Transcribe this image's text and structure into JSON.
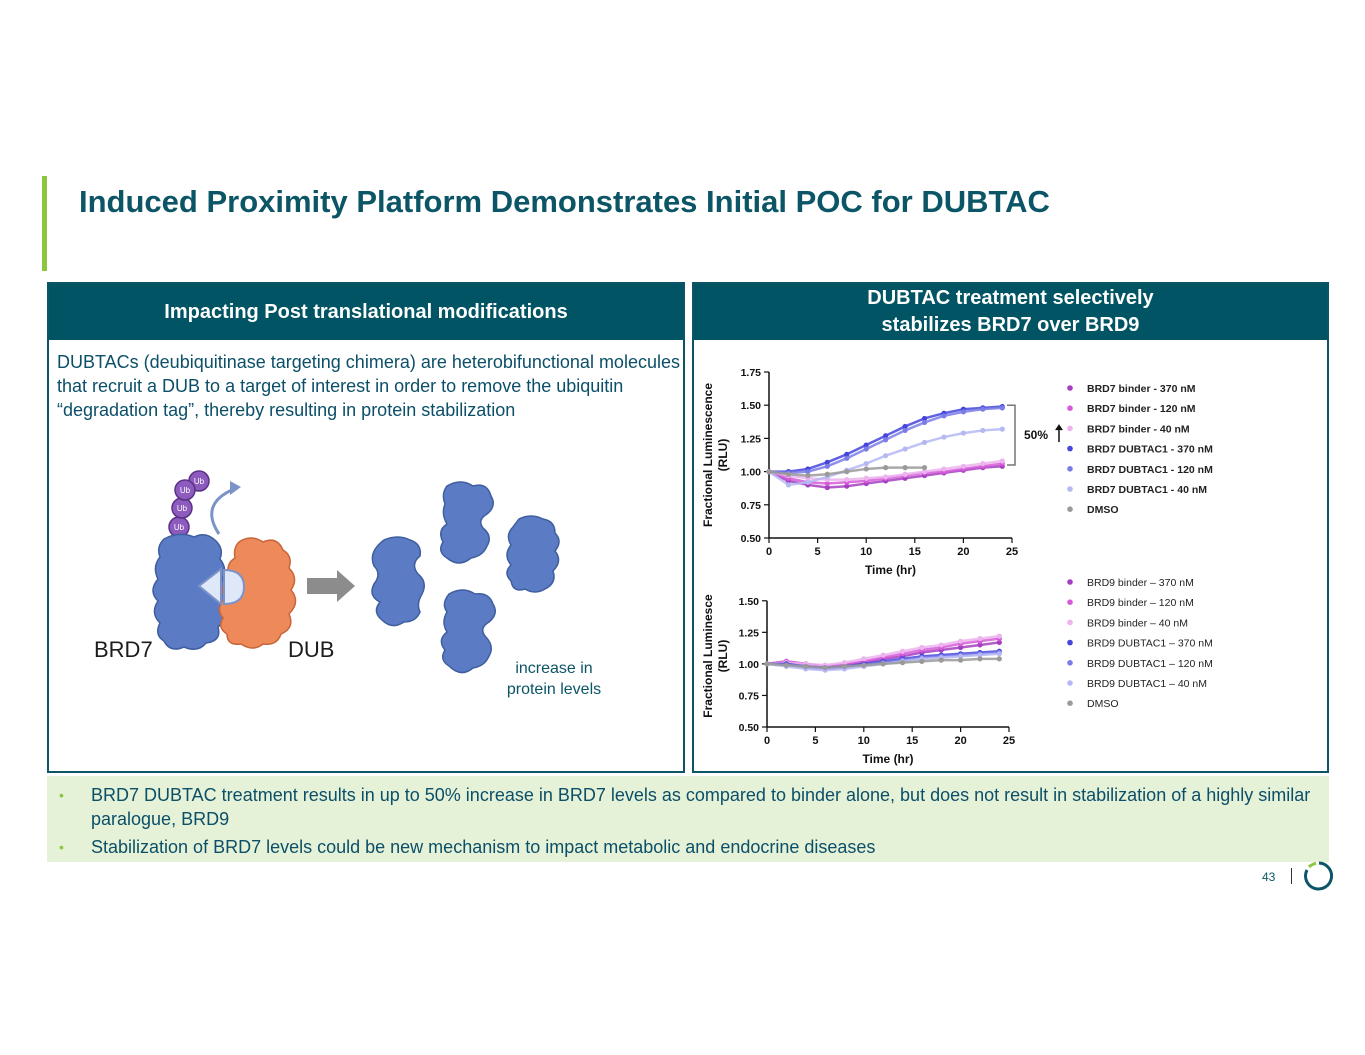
{
  "title": "Induced Proximity Platform Demonstrates Initial POC for DUBTAC",
  "left_panel": {
    "header": "Impacting Post translational modifications",
    "intro": "DUBTACs (deubiquitinase targeting chimera) are heterobifunctional molecules that recruit a DUB to a target of interest in order to remove the ubiquitin “degradation tag”, thereby resulting in protein stabilization",
    "ub_label": "Ub",
    "brd7_label": "BRD7",
    "dub_label": "DUB",
    "increase_label": "increase in protein levels"
  },
  "right_panel": {
    "header_line1": "DUBTAC treatment selectively",
    "header_line2": "stabilizes BRD7 over BRD9"
  },
  "bullets": [
    "BRD7 DUBTAC treatment results in up to 50% increase in BRD7 levels as compared to binder alone, but does not result in stabilization of a highly similar paralogue, BRD9",
    "Stabilization of BRD7 levels could be new mechanism to impact metabolic and endocrine diseases"
  ],
  "page_number": "43",
  "colors": {
    "title": "#0b5566",
    "header_bg": "#005463",
    "accent": "#8cc63f",
    "bullet_bg": "#e6f2d8",
    "protein_blue": "#5b7cc4",
    "dub_orange": "#ee8a5a",
    "ub_purple": "#8d5bbd"
  },
  "chart_data": [
    {
      "type": "scatter",
      "xlabel": "Time (hr)",
      "ylabel_line1": "Fractional  Luminescence",
      "ylabel_line2": "(RLU)",
      "xlim": [
        0,
        25
      ],
      "ylim": [
        0.5,
        1.75
      ],
      "xticks": [
        0,
        5,
        10,
        15,
        20,
        25
      ],
      "xtick_labels": [
        "0",
        "5",
        "10",
        "15",
        "20",
        "25"
      ],
      "yticks": [
        0.5,
        0.75,
        1.0,
        1.25,
        1.5,
        1.75
      ],
      "ytick_labels": [
        "0.50",
        "0.75",
        "1.00",
        "1.25",
        "1.50",
        "1.75"
      ],
      "annotation": "50%",
      "annotation_range": [
        1.05,
        1.5
      ],
      "legend_position": "right",
      "series": [
        {
          "name": "BRD7 binder - 370 nM",
          "color": "#a43fc1",
          "x": [
            0,
            2,
            4,
            6,
            8,
            10,
            12,
            14,
            16,
            18,
            20,
            22,
            24
          ],
          "y": [
            1.0,
            0.93,
            0.9,
            0.88,
            0.89,
            0.91,
            0.93,
            0.95,
            0.97,
            0.99,
            1.01,
            1.03,
            1.04
          ]
        },
        {
          "name": "BRD7 binder -  120 nM",
          "color": "#d65ad8",
          "x": [
            0,
            2,
            4,
            6,
            8,
            10,
            12,
            14,
            16,
            18,
            20,
            22,
            24
          ],
          "y": [
            1.0,
            0.95,
            0.92,
            0.91,
            0.92,
            0.93,
            0.95,
            0.97,
            0.99,
            1.0,
            1.02,
            1.04,
            1.06
          ]
        },
        {
          "name": "BRD7 binder -  40 nM",
          "color": "#ecb3ef",
          "x": [
            0,
            2,
            4,
            6,
            8,
            10,
            12,
            14,
            16,
            18,
            20,
            22,
            24
          ],
          "y": [
            1.0,
            0.97,
            0.95,
            0.94,
            0.94,
            0.95,
            0.96,
            0.98,
            1.0,
            1.02,
            1.04,
            1.06,
            1.08
          ]
        },
        {
          "name": "BRD7 DUBTAC1 -  370 nM",
          "color": "#4545de",
          "x": [
            0,
            2,
            4,
            6,
            8,
            10,
            12,
            14,
            16,
            18,
            20,
            22,
            24
          ],
          "y": [
            1.0,
            1.0,
            1.02,
            1.07,
            1.13,
            1.2,
            1.27,
            1.34,
            1.4,
            1.44,
            1.47,
            1.48,
            1.49
          ]
        },
        {
          "name": "BRD7 DUBTAC1 - 120 nM",
          "color": "#7b7de6",
          "x": [
            0,
            2,
            4,
            6,
            8,
            10,
            12,
            14,
            16,
            18,
            20,
            22,
            24
          ],
          "y": [
            1.0,
            0.99,
            1.0,
            1.04,
            1.1,
            1.17,
            1.24,
            1.31,
            1.37,
            1.42,
            1.45,
            1.47,
            1.48
          ]
        },
        {
          "name": "BRD7 DUBTAC1 -  40 nM",
          "color": "#b5b8f2",
          "x": [
            0,
            2,
            4,
            6,
            8,
            10,
            12,
            14,
            16,
            18,
            20,
            22,
            24
          ],
          "y": [
            1.0,
            0.9,
            0.92,
            0.96,
            1.01,
            1.06,
            1.12,
            1.17,
            1.22,
            1.26,
            1.29,
            1.31,
            1.32
          ]
        },
        {
          "name": "DMSO",
          "color": "#9a9a9a",
          "x": [
            0,
            2,
            4,
            6,
            8,
            10,
            12,
            14,
            16
          ],
          "y": [
            1.0,
            0.98,
            0.97,
            0.98,
            1.0,
            1.02,
            1.03,
            1.03,
            1.03
          ]
        }
      ]
    },
    {
      "type": "scatter",
      "xlabel": "Time (hr)",
      "ylabel_line1": "Fractional  Luminesce",
      "ylabel_line2": "(RLU)",
      "xlim": [
        0,
        25
      ],
      "ylim": [
        0.5,
        1.625
      ],
      "xticks": [
        0,
        5,
        10,
        15,
        20,
        25
      ],
      "xtick_labels": [
        "0",
        "5",
        "10",
        "15",
        "20",
        "25"
      ],
      "yticks": [
        0.5,
        0.75,
        1.0,
        1.25,
        1.5
      ],
      "ytick_labels": [
        "0.50",
        "0.75",
        "1.00",
        "1.25",
        "1.50"
      ],
      "legend_position": "right",
      "series": [
        {
          "name": "BRD9 binder – 370 nM",
          "color": "#a43fc1",
          "x": [
            0,
            2,
            4,
            6,
            8,
            10,
            12,
            14,
            16,
            18,
            20,
            22,
            24
          ],
          "y": [
            1.0,
            1.02,
            1.0,
            0.98,
            0.99,
            1.01,
            1.04,
            1.06,
            1.09,
            1.11,
            1.13,
            1.15,
            1.17
          ]
        },
        {
          "name": "BRD9 binder – 120 nM",
          "color": "#d65ad8",
          "x": [
            0,
            2,
            4,
            6,
            8,
            10,
            12,
            14,
            16,
            18,
            20,
            22,
            24
          ],
          "y": [
            1.0,
            1.02,
            1.0,
            0.98,
            1.0,
            1.02,
            1.05,
            1.08,
            1.11,
            1.13,
            1.16,
            1.18,
            1.2
          ]
        },
        {
          "name": "BRD9 binder – 40 nM",
          "color": "#ecb3ef",
          "x": [
            0,
            2,
            4,
            6,
            8,
            10,
            12,
            14,
            16,
            18,
            20,
            22,
            24
          ],
          "y": [
            1.0,
            1.01,
            1.0,
            0.99,
            1.01,
            1.04,
            1.07,
            1.1,
            1.13,
            1.15,
            1.18,
            1.2,
            1.22
          ]
        },
        {
          "name": "BRD9 DUBTAC1 – 370 nM",
          "color": "#4545de",
          "x": [
            0,
            2,
            4,
            6,
            8,
            10,
            12,
            14,
            16,
            18,
            20,
            22,
            24
          ],
          "y": [
            1.0,
            1.0,
            0.98,
            0.97,
            0.98,
            1.0,
            1.02,
            1.04,
            1.06,
            1.07,
            1.08,
            1.09,
            1.1
          ]
        },
        {
          "name": "BRD9 DUBTAC1 – 120 nM",
          "color": "#7b7de6",
          "x": [
            0,
            2,
            4,
            6,
            8,
            10,
            12,
            14,
            16,
            18,
            20,
            22,
            24
          ],
          "y": [
            1.0,
            0.99,
            0.97,
            0.96,
            0.97,
            0.99,
            1.01,
            1.03,
            1.05,
            1.06,
            1.07,
            1.08,
            1.09
          ]
        },
        {
          "name": "BRD9 DUBTAC1 – 40 nM",
          "color": "#b5b8f2",
          "x": [
            0,
            2,
            4,
            6,
            8,
            10,
            12,
            14,
            16,
            18,
            20,
            22,
            24
          ],
          "y": [
            1.0,
            0.98,
            0.96,
            0.95,
            0.96,
            0.98,
            1.0,
            1.02,
            1.04,
            1.05,
            1.06,
            1.07,
            1.08
          ]
        },
        {
          "name": "DMSO",
          "color": "#9a9a9a",
          "x": [
            0,
            2,
            4,
            6,
            8,
            10,
            12,
            14,
            16,
            18,
            20,
            22,
            24
          ],
          "y": [
            1.0,
            0.99,
            0.98,
            0.97,
            0.98,
            0.99,
            1.0,
            1.01,
            1.02,
            1.03,
            1.03,
            1.04,
            1.04
          ]
        }
      ]
    }
  ]
}
